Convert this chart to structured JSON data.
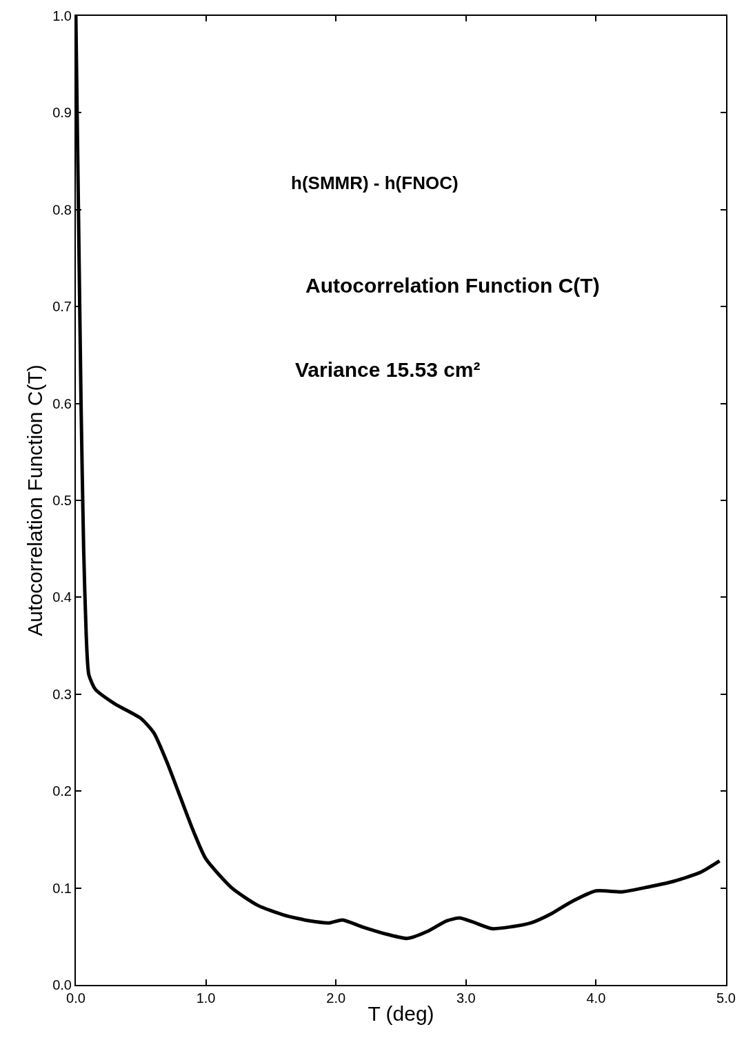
{
  "chart_data": {
    "type": "line",
    "xlabel": "T (deg)",
    "ylabel": "Autocorrelation Function C(T)",
    "annotations": [
      "h(SMMR) - h(FNOC)",
      "Autocorrelation Function C(T)",
      "Variance 15.53 cm²"
    ],
    "x": [
      0,
      0.02,
      0.04,
      0.06,
      0.08,
      0.1,
      0.15,
      0.3,
      0.5,
      0.6,
      0.7,
      0.8,
      0.9,
      1.0,
      1.2,
      1.4,
      1.6,
      1.8,
      1.95,
      2.05,
      2.2,
      2.4,
      2.55,
      2.7,
      2.85,
      2.95,
      3.05,
      3.2,
      3.35,
      3.5,
      3.65,
      3.8,
      4.0,
      4.2,
      4.4,
      4.6,
      4.8,
      4.95
    ],
    "series": [
      {
        "color": "#000000",
        "values": [
          1.0,
          0.8,
          0.6,
          0.45,
          0.36,
          0.32,
          0.305,
          0.29,
          0.275,
          0.26,
          0.23,
          0.195,
          0.16,
          0.13,
          0.1,
          0.082,
          0.072,
          0.066,
          0.064,
          0.067,
          0.06,
          0.052,
          0.048,
          0.055,
          0.066,
          0.069,
          0.065,
          0.058,
          0.06,
          0.064,
          0.073,
          0.085,
          0.097,
          0.096,
          0.101,
          0.107,
          0.116,
          0.128
        ]
      }
    ],
    "xlim": [
      0,
      5
    ],
    "ylim": [
      0,
      1
    ],
    "xticks": [
      {
        "value": 0,
        "label": "0.0"
      },
      {
        "value": 1,
        "label": "1.0"
      },
      {
        "value": 2,
        "label": "2.0"
      },
      {
        "value": 3,
        "label": "3.0"
      },
      {
        "value": 4,
        "label": "4.0"
      },
      {
        "value": 5,
        "label": "5.0"
      }
    ],
    "yticks": [
      {
        "value": 0,
        "label": "0.0"
      },
      0.1,
      0.2,
      0.3,
      0.4,
      0.5,
      0.6,
      0.7,
      0.8,
      0.9,
      {
        "value": 1,
        "label": "1.0"
      }
    ],
    "marker": "none",
    "line_style": "solid"
  }
}
